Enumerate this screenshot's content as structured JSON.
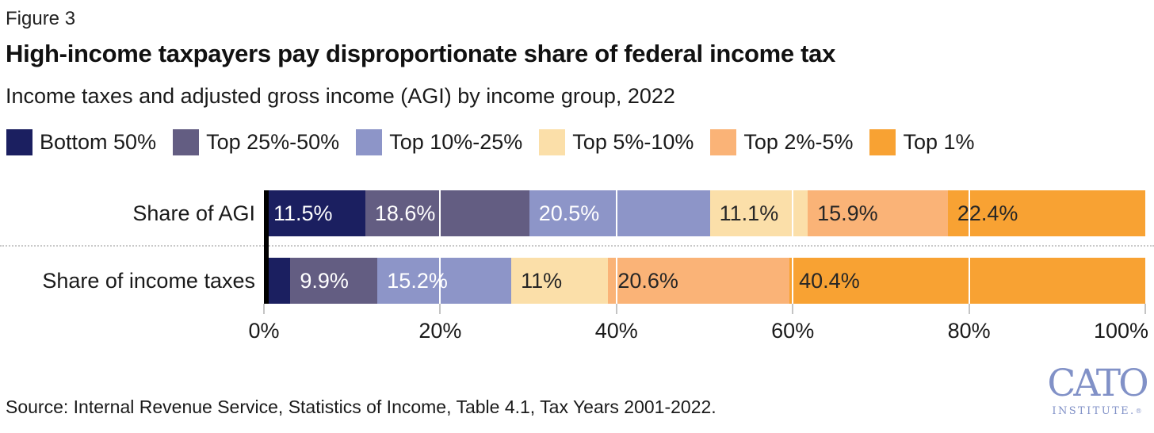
{
  "figure_label": "Figure 3",
  "title": "High-income taxpayers pay disproportionate share of federal income tax",
  "subtitle": "Income taxes and adjusted gross income (AGI) by income group, 2022",
  "source": "Source: Internal Revenue Service, Statistics of Income, Table 4.1, Tax Years 2001-2022.",
  "logo": {
    "wordmark": "CATO",
    "subtext": "INSTITUTE.",
    "reg": "®",
    "color": "#8191c7"
  },
  "colors": {
    "navy": "#1b1f60",
    "purple": "#635d82",
    "periwinkle": "#8d95c8",
    "cream": "#fbdfa9",
    "light_orange": "#fab377",
    "orange": "#f8a233",
    "axis_spine": "#000000",
    "grid_over_bars": "#ffffff",
    "row_separator": "#c9c9c9",
    "text": "#1a1a1a"
  },
  "chart_data": {
    "type": "bar",
    "stacked": true,
    "orientation": "horizontal",
    "title": "High-income taxpayers pay disproportionate share of federal income tax",
    "subtitle": "Income taxes and adjusted gross income (AGI) by income group, 2022",
    "categories": [
      "Share of AGI",
      "Share of income taxes"
    ],
    "series": [
      {
        "name": "Bottom 50%",
        "color": "#1b1f60",
        "label_color": "#ffffff",
        "values": [
          11.5,
          3.0
        ],
        "labels": [
          "11.5%",
          ""
        ]
      },
      {
        "name": "Top 25%-50%",
        "color": "#635d82",
        "label_color": "#ffffff",
        "values": [
          18.6,
          9.9
        ],
        "labels": [
          "18.6%",
          "9.9%"
        ]
      },
      {
        "name": "Top 10%-25%",
        "color": "#8d95c8",
        "label_color": "#ffffff",
        "values": [
          20.5,
          15.2
        ],
        "labels": [
          "20.5%",
          "15.2%"
        ]
      },
      {
        "name": "Top 5%-10%",
        "color": "#fbdfa9",
        "label_color": "#262626",
        "values": [
          11.1,
          11.0
        ],
        "labels": [
          "11.1%",
          "11%"
        ]
      },
      {
        "name": "Top 2%-5%",
        "color": "#fab377",
        "label_color": "#262626",
        "values": [
          15.9,
          20.6
        ],
        "labels": [
          "15.9%",
          "20.6%"
        ]
      },
      {
        "name": "Top 1%",
        "color": "#f8a233",
        "label_color": "#262626",
        "values": [
          22.4,
          40.4
        ],
        "labels": [
          "22.4%",
          "40.4%"
        ]
      }
    ],
    "note": "Bottom 50% share of income taxes segment is unlabeled in the figure; width measures approximately 3%.",
    "x_ticks": [
      {
        "value": 0,
        "label": "0%"
      },
      {
        "value": 20,
        "label": "20%"
      },
      {
        "value": 40,
        "label": "40%"
      },
      {
        "value": 60,
        "label": "60%"
      },
      {
        "value": 80,
        "label": "80%"
      },
      {
        "value": 100,
        "label": "100%"
      }
    ],
    "xlim": [
      0,
      100
    ],
    "grid": "white vertical gridlines at 20% intervals drawn over bars",
    "legend_position": "top"
  }
}
